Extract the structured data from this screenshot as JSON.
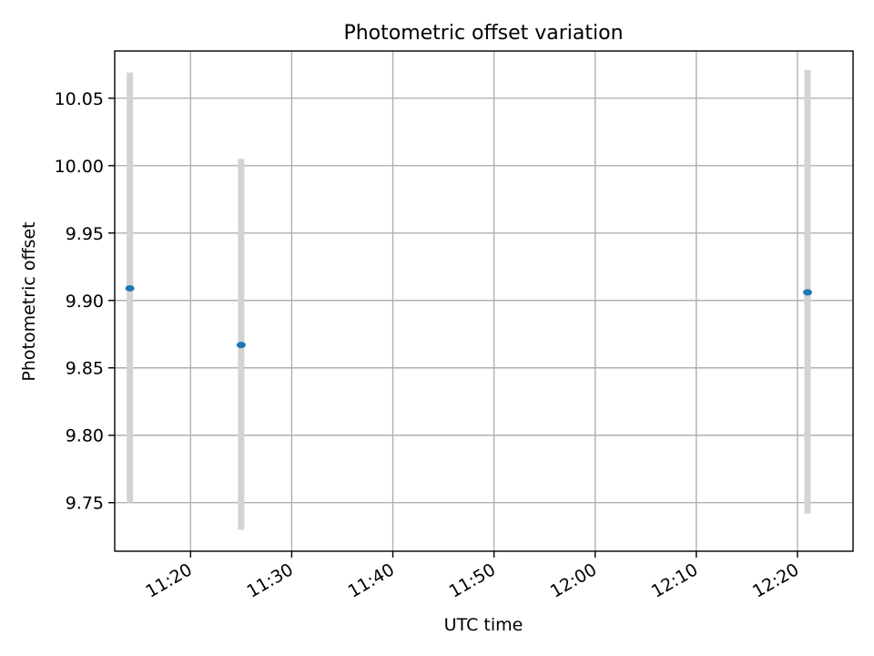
{
  "chart_data": {
    "type": "scatter",
    "title": "Photometric offset variation",
    "xlabel": "UTC time",
    "ylabel": "Photometric offset",
    "xlim": [
      "11:12:30",
      "12:25:30"
    ],
    "ylim": [
      9.714,
      10.085
    ],
    "x_ticks": [
      "11:20",
      "11:30",
      "11:40",
      "11:50",
      "12:00",
      "12:10",
      "12:20"
    ],
    "y_ticks": [
      "9.75",
      "9.80",
      "9.85",
      "9.90",
      "9.95",
      "10.00",
      "10.05"
    ],
    "grid": true,
    "points": [
      {
        "x": "11:14:00",
        "y": 9.909,
        "yerr_low": 9.75,
        "yerr_high": 10.069
      },
      {
        "x": "11:25:00",
        "y": 9.867,
        "yerr_low": 9.73,
        "yerr_high": 10.005
      },
      {
        "x": "12:21:00",
        "y": 9.906,
        "yerr_low": 9.742,
        "yerr_high": 10.071
      }
    ],
    "colors": {
      "marker": "#1f77b4",
      "errorbar": "#d3d3d3",
      "grid": "#b0b0b0"
    }
  }
}
